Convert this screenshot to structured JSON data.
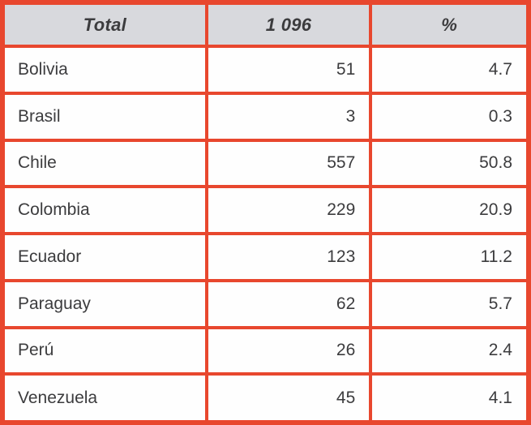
{
  "table": {
    "header": {
      "label": "Total",
      "total_count": "1 096",
      "percent_symbol": "%"
    },
    "rows": [
      {
        "country": "Bolivia",
        "count": "51",
        "percent": "4.7"
      },
      {
        "country": "Brasil",
        "count": "3",
        "percent": "0.3"
      },
      {
        "country": "Chile",
        "count": "557",
        "percent": "50.8"
      },
      {
        "country": "Colombia",
        "count": "229",
        "percent": "20.9"
      },
      {
        "country": "Ecuador",
        "count": "123",
        "percent": "11.2"
      },
      {
        "country": "Paraguay",
        "count": "62",
        "percent": "5.7"
      },
      {
        "country": "Perú",
        "count": "26",
        "percent": "2.4"
      },
      {
        "country": "Venezuela",
        "count": "45",
        "percent": "4.1"
      }
    ]
  },
  "colors": {
    "border": "#e8472e",
    "header_bg": "#d8d9dd",
    "text": "#3c3c3e",
    "row_bg": "#fefefe"
  },
  "chart_data": {
    "type": "table",
    "title": "",
    "columns": [
      "Total",
      "1 096",
      "%"
    ],
    "categories": [
      "Bolivia",
      "Brasil",
      "Chile",
      "Colombia",
      "Ecuador",
      "Paraguay",
      "Perú",
      "Venezuela"
    ],
    "series": [
      {
        "name": "count",
        "values": [
          51,
          3,
          557,
          229,
          123,
          62,
          26,
          45
        ]
      },
      {
        "name": "percent",
        "values": [
          4.7,
          0.3,
          50.8,
          20.9,
          11.2,
          5.7,
          2.4,
          4.1
        ]
      }
    ],
    "total": 1096,
    "layout_hints": {
      "header_style": "bold-italic on light gray",
      "borders": "thick red-orange grid",
      "country_align": "left",
      "number_align": "right"
    }
  }
}
